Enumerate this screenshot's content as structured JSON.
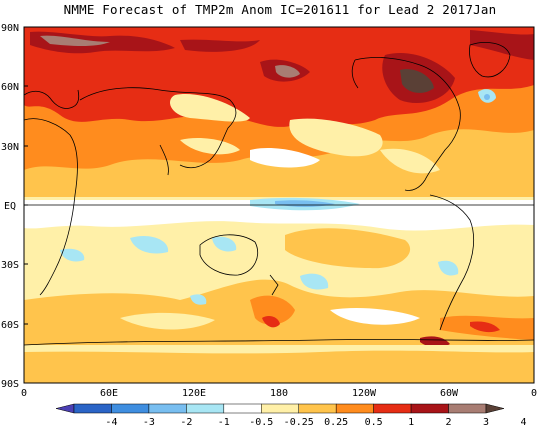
{
  "title": "NMME Forecast of TMP2m Anom IC=201611 for Lead 2 2017Jan",
  "y_ticks": [
    "90N",
    "60N",
    "30N",
    "EQ",
    "30S",
    "60S",
    "90S"
  ],
  "x_ticks": [
    "0",
    "60E",
    "120E",
    "180",
    "120W",
    "60W",
    "0"
  ],
  "colorbar": {
    "labels": [
      "-4",
      "-3",
      "-2",
      "-1",
      "-0.5",
      "-0.25",
      "0.25",
      "0.5",
      "1",
      "2",
      "3",
      "4"
    ],
    "colors": [
      "#4b3fb4",
      "#2a64c6",
      "#3f8ee0",
      "#78bef0",
      "#a8e6f4",
      "#ffffff",
      "#fff0a8",
      "#ffc44c",
      "#ff8c1e",
      "#e62d14",
      "#a81418",
      "#a87d73",
      "#5a4036"
    ]
  }
}
